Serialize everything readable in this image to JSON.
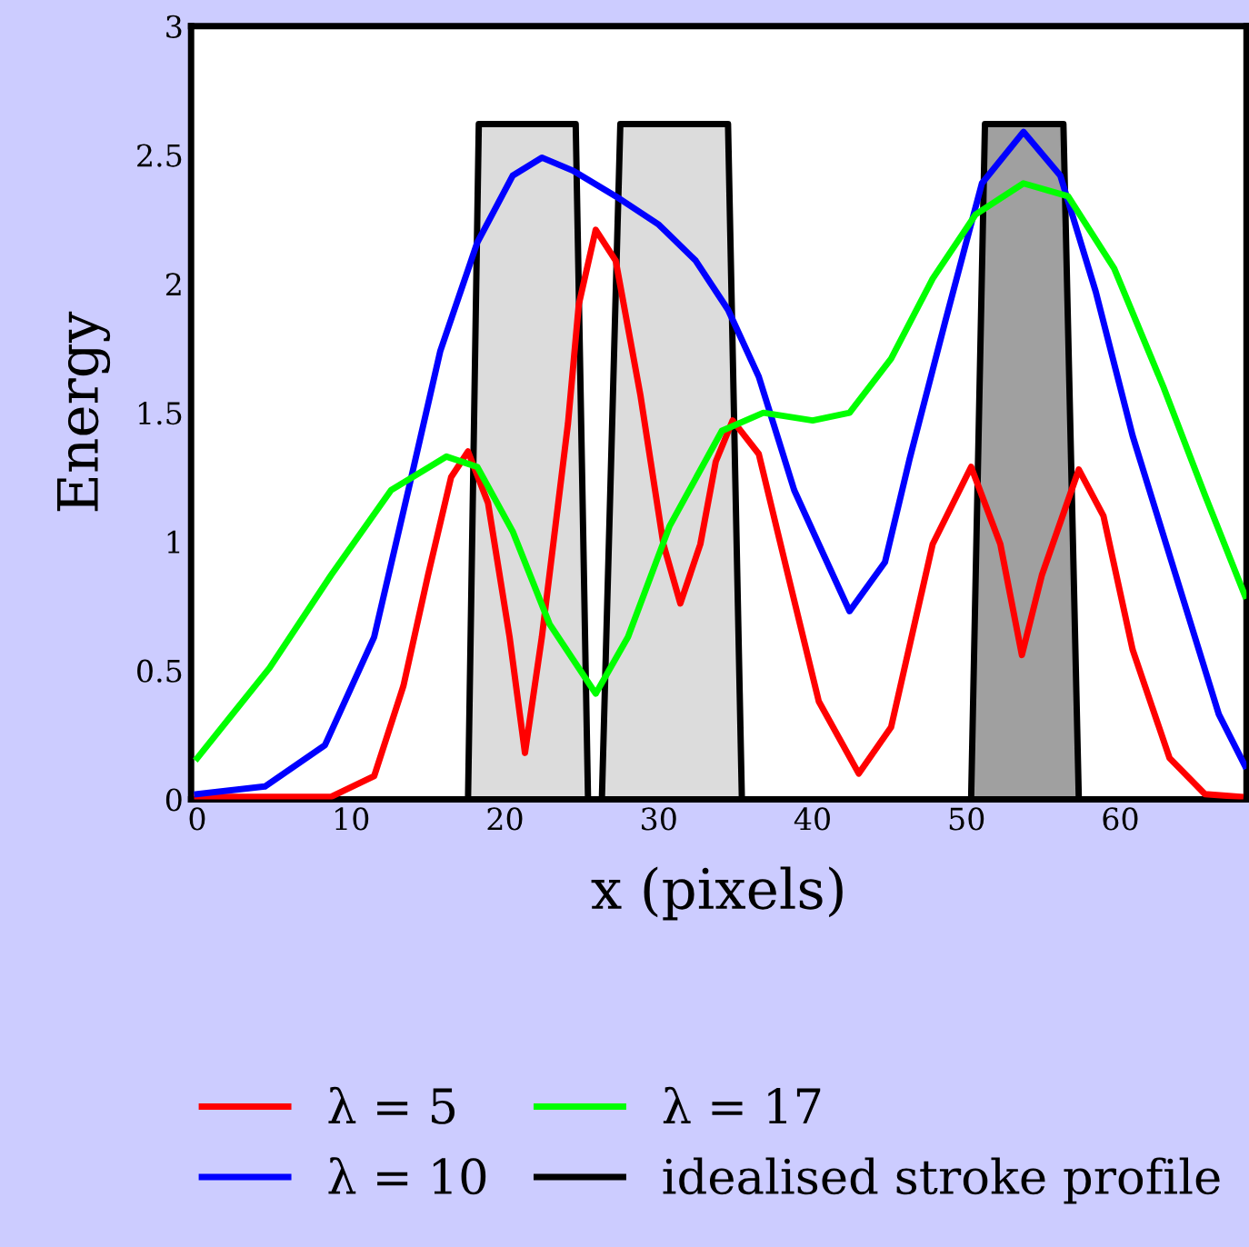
{
  "chart_data": {
    "type": "line",
    "xlabel": "x (pixels)",
    "ylabel": "Energy",
    "xlim": [
      -0.4,
      68.2
    ],
    "ylim": [
      0,
      3
    ],
    "xticks": [
      0,
      10,
      20,
      30,
      40,
      50,
      60
    ],
    "yticks": [
      0,
      0.5,
      1,
      1.5,
      2,
      2.5,
      3
    ],
    "grid": false,
    "legend": "bottom",
    "series": [
      {
        "type": "area",
        "color": "#dcdcdc",
        "x": [
          17.6,
          18.3,
          24.6,
          25.4
        ],
        "values": [
          0,
          2.62,
          2.62,
          0
        ]
      },
      {
        "type": "area",
        "color": "#dcdcdc",
        "x": [
          26.3,
          27.5,
          34.5,
          35.4
        ],
        "values": [
          0,
          2.62,
          2.62,
          0
        ]
      },
      {
        "type": "area",
        "color": "#a0a0a0",
        "x": [
          50.3,
          51.2,
          56.3,
          57.3
        ],
        "values": [
          0,
          2.62,
          2.62,
          0
        ]
      },
      {
        "name": "λ = 5",
        "color": "#ff0000",
        "x": [
          0,
          8.7,
          11.5,
          13.4,
          15,
          16.5,
          17.6,
          18.9,
          20.3,
          21.3,
          22.4,
          24.1,
          24.8,
          25.9,
          27.2,
          28.8,
          30.3,
          31.4,
          32.7,
          33.7,
          34.8,
          36.5,
          38.4,
          40.4,
          43,
          45.1,
          47.8,
          50.3,
          52.2,
          53.6,
          54.9,
          57.3,
          58.9,
          60.8,
          63.2,
          65.5,
          67.8
        ],
        "values": [
          0.01,
          0.01,
          0.09,
          0.44,
          0.87,
          1.25,
          1.35,
          1.15,
          0.63,
          0.18,
          0.63,
          1.46,
          1.92,
          2.21,
          2.09,
          1.57,
          0.99,
          0.76,
          0.99,
          1.31,
          1.47,
          1.34,
          0.87,
          0.38,
          0.1,
          0.28,
          0.99,
          1.29,
          0.99,
          0.56,
          0.87,
          1.28,
          1.1,
          0.58,
          0.16,
          0.02,
          0.01
        ]
      },
      {
        "name": "λ = 10",
        "color": "#0000ff",
        "x": [
          0,
          4.4,
          8.3,
          11.5,
          13.8,
          15.8,
          18.2,
          20.5,
          22.4,
          24.4,
          27.2,
          30,
          32.4,
          34.5,
          36.5,
          38.8,
          40.4,
          42.4,
          44.7,
          46.3,
          48.6,
          51,
          53.7,
          56.1,
          58.4,
          60.8,
          63.6,
          66.4,
          68.1
        ],
        "values": [
          0.02,
          0.05,
          0.21,
          0.63,
          1.22,
          1.74,
          2.16,
          2.42,
          2.49,
          2.44,
          2.34,
          2.23,
          2.09,
          1.9,
          1.64,
          1.2,
          0.99,
          0.73,
          0.92,
          1.32,
          1.85,
          2.39,
          2.59,
          2.42,
          1.97,
          1.41,
          0.87,
          0.33,
          0.13
        ]
      },
      {
        "name": "λ = 17",
        "color": "#00ff00",
        "x": [
          0,
          4.7,
          8.7,
          12.6,
          16.2,
          18.2,
          20.5,
          22.9,
          25.9,
          28,
          30.7,
          34.1,
          36.8,
          40,
          42.4,
          45.1,
          47.8,
          50.6,
          53.7,
          56.6,
          59.6,
          62.8,
          65.5,
          68.1
        ],
        "values": [
          0.16,
          0.51,
          0.87,
          1.2,
          1.33,
          1.29,
          1.04,
          0.68,
          0.41,
          0.63,
          1.06,
          1.43,
          1.5,
          1.47,
          1.5,
          1.71,
          2.02,
          2.27,
          2.39,
          2.34,
          2.06,
          1.6,
          1.18,
          0.79
        ]
      },
      {
        "name": "idealised stroke profile",
        "color": "#000000",
        "x": [
          17.6,
          18.3,
          24.6,
          25.4,
          26.3,
          27.5,
          34.5,
          35.4,
          50.3,
          51.2,
          56.3,
          57.3
        ],
        "values": [
          0,
          2.62,
          2.62,
          0,
          0,
          2.62,
          2.62,
          0,
          0,
          2.62,
          2.62,
          0
        ]
      }
    ]
  }
}
